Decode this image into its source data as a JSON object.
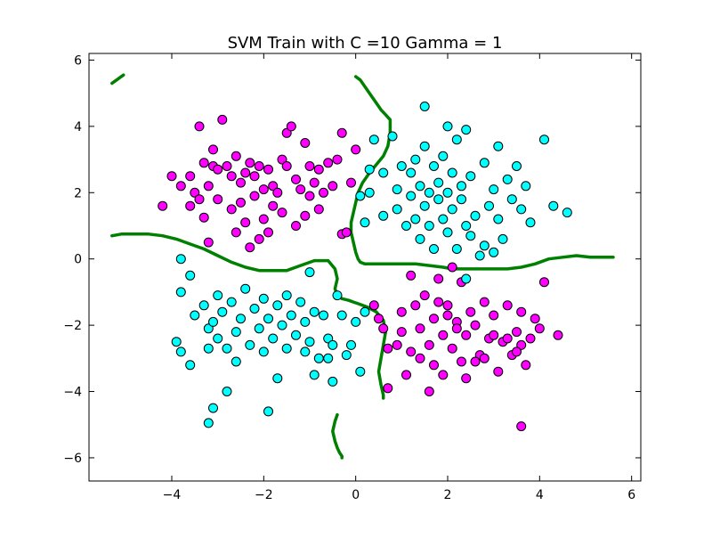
{
  "chart_data": {
    "type": "scatter",
    "title": "SVM Train with C =10 Gamma = 1",
    "xlabel": "",
    "ylabel": "",
    "xlim": [
      -5.8,
      6.2
    ],
    "ylim": [
      -6.7,
      6.2
    ],
    "xticks": [
      -4,
      -2,
      0,
      2,
      4,
      6
    ],
    "yticks": [
      -6,
      -4,
      -2,
      0,
      2,
      4,
      6
    ],
    "xtick_labels": [
      "−4",
      "−2",
      "0",
      "2",
      "4",
      "6"
    ],
    "ytick_labels": [
      "−6",
      "−4",
      "−2",
      "0",
      "2",
      "4",
      "6"
    ],
    "grid": false,
    "legend": false,
    "colors": {
      "class_magenta": "#ff00ff",
      "class_cyan": "#00ffff",
      "boundary": "#008000",
      "axes": "#000000"
    },
    "series": [
      {
        "color": "#ff00ff",
        "points": [
          [
            -4.2,
            1.6
          ],
          [
            -4.0,
            2.5
          ],
          [
            -3.8,
            2.2
          ],
          [
            -3.6,
            2.5
          ],
          [
            -3.6,
            1.6
          ],
          [
            -3.5,
            2.0
          ],
          [
            -3.4,
            1.8
          ],
          [
            -3.4,
            4.0
          ],
          [
            -3.3,
            1.25
          ],
          [
            -3.3,
            2.9
          ],
          [
            -3.2,
            2.2
          ],
          [
            -3.2,
            0.5
          ],
          [
            -3.1,
            2.8
          ],
          [
            -3.1,
            3.3
          ],
          [
            -3.0,
            1.8
          ],
          [
            -3.0,
            2.7
          ],
          [
            -2.9,
            4.2
          ],
          [
            -2.8,
            2.8
          ],
          [
            -2.7,
            2.5
          ],
          [
            -2.7,
            1.5
          ],
          [
            -2.6,
            0.8
          ],
          [
            -2.6,
            3.1
          ],
          [
            -2.5,
            2.3
          ],
          [
            -2.5,
            1.7
          ],
          [
            -2.4,
            2.6
          ],
          [
            -2.4,
            1.1
          ],
          [
            -2.3,
            0.35
          ],
          [
            -2.3,
            2.9
          ],
          [
            -2.2,
            2.5
          ],
          [
            -2.2,
            1.9
          ],
          [
            -2.1,
            2.8
          ],
          [
            -2.1,
            0.6
          ],
          [
            -2.0,
            2.1
          ],
          [
            -2.0,
            1.2
          ],
          [
            -1.9,
            2.7
          ],
          [
            -1.9,
            0.8
          ],
          [
            -1.8,
            2.2
          ],
          [
            -1.8,
            1.6
          ],
          [
            -1.7,
            2.0
          ],
          [
            -1.6,
            1.4
          ],
          [
            -1.6,
            3.0
          ],
          [
            -1.5,
            2.8
          ],
          [
            -1.5,
            3.8
          ],
          [
            -1.4,
            4.0
          ],
          [
            -1.3,
            2.4
          ],
          [
            -1.3,
            1.0
          ],
          [
            -1.2,
            2.1
          ],
          [
            -1.1,
            3.5
          ],
          [
            -1.1,
            1.3
          ],
          [
            -1.0,
            2.8
          ],
          [
            -1.0,
            1.9
          ],
          [
            -0.9,
            2.3
          ],
          [
            -0.8,
            1.5
          ],
          [
            -0.8,
            2.7
          ],
          [
            -0.7,
            2.0
          ],
          [
            -0.6,
            2.9
          ],
          [
            -0.5,
            2.2
          ],
          [
            -0.4,
            3.0
          ],
          [
            -0.3,
            0.75
          ],
          [
            -0.2,
            0.8
          ],
          [
            -0.3,
            3.8
          ],
          [
            -0.1,
            2.3
          ],
          [
            0.0,
            3.3
          ],
          [
            0.4,
            -1.4
          ],
          [
            0.5,
            -1.8
          ],
          [
            0.6,
            -2.1
          ],
          [
            0.7,
            -2.7
          ],
          [
            0.7,
            -3.9
          ],
          [
            0.9,
            -2.6
          ],
          [
            1.0,
            -1.6
          ],
          [
            1.0,
            -2.2
          ],
          [
            1.1,
            -3.5
          ],
          [
            1.2,
            -2.8
          ],
          [
            1.2,
            -0.5
          ],
          [
            1.3,
            -1.4
          ],
          [
            1.4,
            -3.0
          ],
          [
            1.4,
            -2.1
          ],
          [
            1.5,
            -1.1
          ],
          [
            1.6,
            -4.0
          ],
          [
            1.6,
            -2.6
          ],
          [
            1.7,
            -1.8
          ],
          [
            1.7,
            -3.2
          ],
          [
            1.8,
            -0.6
          ],
          [
            1.9,
            -2.3
          ],
          [
            1.9,
            -3.5
          ],
          [
            2.0,
            -1.4
          ],
          [
            2.1,
            -2.7
          ],
          [
            2.1,
            -0.25
          ],
          [
            2.2,
            -1.9
          ],
          [
            2.3,
            -3.1
          ],
          [
            2.3,
            -0.7
          ],
          [
            2.4,
            -2.3
          ],
          [
            2.4,
            -3.6
          ],
          [
            2.5,
            -1.6
          ],
          [
            2.6,
            -2.0
          ],
          [
            2.7,
            -2.9
          ],
          [
            2.8,
            -1.3
          ],
          [
            2.8,
            -3.0
          ],
          [
            2.9,
            -2.4
          ],
          [
            3.0,
            -1.7
          ],
          [
            3.1,
            -3.4
          ],
          [
            3.2,
            -2.5
          ],
          [
            3.3,
            -1.4
          ],
          [
            3.4,
            -2.9
          ],
          [
            3.5,
            -2.2
          ],
          [
            3.6,
            -2.6
          ],
          [
            3.6,
            -1.6
          ],
          [
            3.7,
            -3.2
          ],
          [
            3.8,
            -2.4
          ],
          [
            3.9,
            -1.8
          ],
          [
            4.0,
            -2.1
          ],
          [
            4.1,
            -0.7
          ],
          [
            4.4,
            -2.3
          ],
          [
            3.6,
            -5.05
          ],
          [
            3.3,
            -2.4
          ],
          [
            2.6,
            -3.1
          ],
          [
            1.8,
            -1.3
          ],
          [
            2.0,
            -1.7
          ],
          [
            3.0,
            -2.3
          ],
          [
            3.5,
            -2.8
          ],
          [
            2.2,
            -2.1
          ]
        ]
      },
      {
        "color": "#00ffff",
        "points": [
          [
            0.1,
            1.9
          ],
          [
            0.2,
            1.1
          ],
          [
            0.3,
            2.7
          ],
          [
            0.3,
            2.0
          ],
          [
            0.4,
            3.6
          ],
          [
            0.6,
            2.6
          ],
          [
            0.6,
            1.3
          ],
          [
            0.8,
            3.7
          ],
          [
            0.9,
            2.1
          ],
          [
            0.9,
            1.5
          ],
          [
            1.0,
            2.8
          ],
          [
            1.1,
            1.0
          ],
          [
            1.2,
            2.6
          ],
          [
            1.2,
            1.9
          ],
          [
            1.3,
            3.0
          ],
          [
            1.3,
            1.2
          ],
          [
            1.4,
            2.2
          ],
          [
            1.4,
            0.6
          ],
          [
            1.5,
            1.6
          ],
          [
            1.5,
            3.4
          ],
          [
            1.5,
            4.6
          ],
          [
            1.6,
            2.0
          ],
          [
            1.6,
            1.0
          ],
          [
            1.7,
            2.8
          ],
          [
            1.7,
            0.3
          ],
          [
            1.8,
            1.8
          ],
          [
            1.8,
            2.3
          ],
          [
            1.9,
            1.2
          ],
          [
            1.9,
            3.1
          ],
          [
            2.0,
            2.0
          ],
          [
            2.0,
            0.8
          ],
          [
            2.0,
            4.0
          ],
          [
            2.1,
            1.5
          ],
          [
            2.1,
            2.6
          ],
          [
            2.2,
            0.3
          ],
          [
            2.2,
            3.6
          ],
          [
            2.3,
            1.8
          ],
          [
            2.3,
            2.2
          ],
          [
            2.4,
            1.0
          ],
          [
            2.4,
            3.9
          ],
          [
            2.5,
            0.7
          ],
          [
            2.5,
            2.5
          ],
          [
            2.6,
            1.3
          ],
          [
            2.7,
            0.1
          ],
          [
            2.8,
            2.9
          ],
          [
            2.8,
            0.4
          ],
          [
            2.9,
            1.6
          ],
          [
            3.0,
            2.1
          ],
          [
            3.1,
            3.4
          ],
          [
            3.1,
            1.2
          ],
          [
            3.2,
            0.6
          ],
          [
            3.3,
            2.4
          ],
          [
            3.4,
            1.8
          ],
          [
            3.5,
            2.8
          ],
          [
            3.6,
            1.5
          ],
          [
            3.7,
            2.2
          ],
          [
            3.8,
            1.1
          ],
          [
            4.1,
            3.6
          ],
          [
            4.3,
            1.6
          ],
          [
            4.6,
            1.4
          ],
          [
            3.0,
            0.2
          ],
          [
            2.4,
            -0.6
          ],
          [
            -3.8,
            0.0
          ],
          [
            -3.8,
            -1.0
          ],
          [
            -3.6,
            -0.5
          ],
          [
            -3.5,
            -1.7
          ],
          [
            -3.3,
            -1.4
          ],
          [
            -3.2,
            -2.1
          ],
          [
            -3.1,
            -1.9
          ],
          [
            -3.0,
            -1.1
          ],
          [
            -3.0,
            -2.4
          ],
          [
            -2.9,
            -1.6
          ],
          [
            -2.8,
            -2.7
          ],
          [
            -2.7,
            -1.3
          ],
          [
            -2.6,
            -2.2
          ],
          [
            -2.6,
            -3.1
          ],
          [
            -2.5,
            -1.8
          ],
          [
            -2.4,
            -0.9
          ],
          [
            -2.3,
            -2.6
          ],
          [
            -2.2,
            -1.5
          ],
          [
            -2.1,
            -2.1
          ],
          [
            -2.0,
            -1.2
          ],
          [
            -2.0,
            -2.8
          ],
          [
            -1.9,
            -1.8
          ],
          [
            -1.8,
            -2.4
          ],
          [
            -1.7,
            -1.4
          ],
          [
            -1.7,
            -3.6
          ],
          [
            -1.6,
            -2.0
          ],
          [
            -1.5,
            -1.1
          ],
          [
            -1.5,
            -2.7
          ],
          [
            -1.4,
            -1.7
          ],
          [
            -1.3,
            -2.3
          ],
          [
            -1.2,
            -1.3
          ],
          [
            -1.1,
            -1.9
          ],
          [
            -1.0,
            -0.4
          ],
          [
            -1.0,
            -2.5
          ],
          [
            -0.9,
            -1.6
          ],
          [
            -0.8,
            -3.0
          ],
          [
            -0.7,
            -1.7
          ],
          [
            -0.6,
            -2.4
          ],
          [
            -0.5,
            -3.7
          ],
          [
            -0.4,
            -1.1
          ],
          [
            -0.3,
            -1.7
          ],
          [
            -0.2,
            -2.9
          ],
          [
            -0.1,
            -2.6
          ],
          [
            0.0,
            -1.9
          ],
          [
            0.1,
            -3.4
          ],
          [
            0.2,
            -1.6
          ],
          [
            -0.9,
            -3.5
          ],
          [
            -0.6,
            -3.0
          ],
          [
            -3.9,
            -2.5
          ],
          [
            -3.8,
            -2.8
          ],
          [
            -3.6,
            -3.2
          ],
          [
            -3.2,
            -2.7
          ],
          [
            -2.8,
            -4.0
          ],
          [
            -3.1,
            -4.5
          ],
          [
            -3.2,
            -4.95
          ],
          [
            -1.9,
            -4.6
          ],
          [
            -0.5,
            -2.6
          ],
          [
            -1.1,
            -2.8
          ]
        ]
      }
    ],
    "decision_boundary": [
      {
        "x": [
          -5.3,
          -5.2,
          -5.1,
          -5.05
        ],
        "y": [
          5.3,
          5.4,
          5.5,
          5.55
        ]
      },
      {
        "x": [
          -5.3,
          -5.1,
          -4.8,
          -4.5,
          -4.2,
          -3.9,
          -3.6,
          -3.3,
          -3.0,
          -2.7,
          -2.4,
          -2.1,
          -1.8,
          -1.5,
          -1.2,
          -0.9,
          -0.6,
          -0.45,
          -0.4,
          -0.45,
          -0.4,
          -0.3,
          -0.15,
          -0.05,
          0.05,
          0.25,
          0.45,
          0.6,
          0.65,
          0.6,
          0.55,
          0.5,
          0.55,
          0.6,
          0.6
        ],
        "y": [
          0.7,
          0.75,
          0.75,
          0.75,
          0.7,
          0.6,
          0.45,
          0.3,
          0.1,
          -0.1,
          -0.25,
          -0.35,
          -0.35,
          -0.35,
          -0.2,
          -0.05,
          -0.05,
          -0.3,
          -0.6,
          -0.9,
          -1.1,
          -1.2,
          -1.25,
          -1.3,
          -1.35,
          -1.45,
          -1.6,
          -1.85,
          -2.2,
          -2.6,
          -3.0,
          -3.4,
          -3.8,
          -4.1,
          -4.2
        ]
      },
      {
        "x": [
          0.0,
          0.1,
          0.2,
          0.3,
          0.45,
          0.55,
          0.65,
          0.75,
          0.75,
          0.7,
          0.6,
          0.45,
          0.3,
          0.15,
          0.05,
          0.0,
          -0.05,
          -0.1,
          -0.1,
          -0.05,
          0.0,
          0.05,
          0.1,
          0.2,
          0.4,
          0.7,
          1.0,
          1.3,
          1.6,
          1.9,
          2.1,
          2.4,
          2.7,
          3.0,
          3.3,
          3.6,
          3.9,
          4.2,
          4.5,
          4.8,
          5.1,
          5.6
        ],
        "y": [
          5.5,
          5.4,
          5.2,
          5.0,
          4.7,
          4.5,
          4.35,
          4.2,
          3.8,
          3.4,
          3.1,
          2.85,
          2.6,
          2.3,
          2.0,
          1.7,
          1.4,
          1.1,
          0.8,
          0.5,
          0.2,
          0.0,
          -0.1,
          -0.15,
          -0.15,
          -0.15,
          -0.15,
          -0.15,
          -0.2,
          -0.25,
          -0.3,
          -0.3,
          -0.3,
          -0.3,
          -0.3,
          -0.25,
          -0.15,
          0.0,
          0.05,
          0.1,
          0.05,
          0.05
        ]
      },
      {
        "x": [
          -0.4,
          -0.45,
          -0.5,
          -0.45,
          -0.4,
          -0.35,
          -0.3,
          -0.3
        ],
        "y": [
          -4.7,
          -4.9,
          -5.2,
          -5.5,
          -5.7,
          -5.85,
          -5.95,
          -6.0
        ]
      }
    ]
  }
}
